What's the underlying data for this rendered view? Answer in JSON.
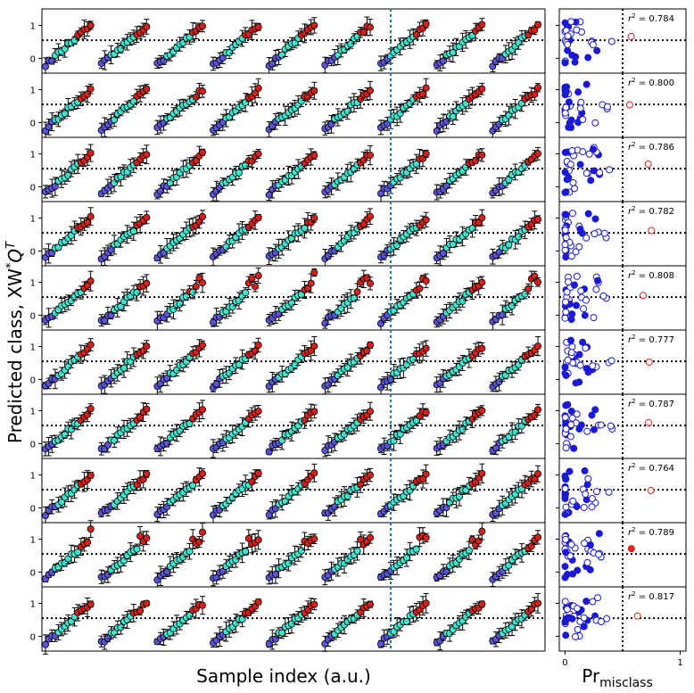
{
  "figure": {
    "ylabel_text": "Predicted class, XW",
    "ylabel_sup": "*",
    "ylabel_q": "Q",
    "ylabel_qsup": "T",
    "left_xlabel": "Sample index (a.u.)",
    "right_xlabel_main": "Pr",
    "right_xlabel_sub": "misclass"
  },
  "chart_data": [
    {
      "type": "scatter",
      "name": "left-panels",
      "panel_count": 10,
      "ylim": [
        -0.45,
        1.5
      ],
      "yticks": [
        0,
        1
      ],
      "ytick_labels": [
        "0",
        "1"
      ],
      "threshold_y": 0.55,
      "groups_per_panel": 9,
      "points_per_group": 15,
      "class_colors": {
        "low": "#5a54d6",
        "mid": "#3ee6d0",
        "high": "#d8201a"
      },
      "divider_color": "#1f77b4",
      "grid": false
    },
    {
      "type": "scatter",
      "name": "right-panels",
      "panel_count": 10,
      "xlim": [
        -0.05,
        1.05
      ],
      "xticks": [
        0,
        1
      ],
      "xtick_labels": [
        "0",
        "1"
      ],
      "threshold_x": 0.5,
      "threshold_y": 0.55,
      "r2_values": [
        "0.784",
        "0.800",
        "0.786",
        "0.782",
        "0.808",
        "0.777",
        "0.787",
        "0.764",
        "0.789",
        "0.817"
      ],
      "r2_prefix": "r",
      "r2_sup": "2",
      "r2_eq": "=",
      "grid": false
    }
  ],
  "colors": {
    "low": "#5a54d6",
    "mid": "#3ee6d0",
    "high": "#d8201a",
    "blue_point": "#1a1ad6",
    "red_point": "#e0201a",
    "divider": "#1f77b4"
  }
}
